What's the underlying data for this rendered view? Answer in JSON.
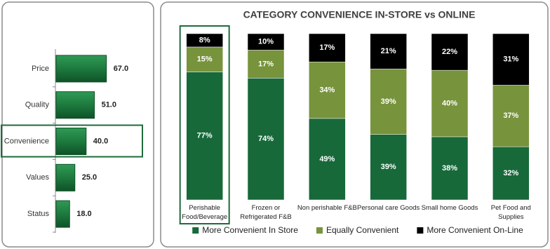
{
  "chart_data": [
    {
      "type": "hbar",
      "categories": [
        "Price",
        "Quality",
        "Convenience",
        "Values",
        "Status"
      ],
      "values": [
        67.0,
        51.0,
        40.0,
        25.0,
        18.0
      ],
      "value_labels": [
        "67.0",
        "51.0",
        "40.0",
        "25.0",
        "18.0"
      ],
      "color": "#1d7a3e",
      "highlight": 2
    },
    {
      "type": "stacked_bar",
      "title": "CATEGORY CONVENIENCE IN-STORE vs ONLINE",
      "categories": [
        "Perishable Food/Beverage",
        "Frozen or Refrigerated F&B",
        "Non perishable F&B",
        "Personal care Goods",
        "Small home Goods",
        "Pet Food and Supplies"
      ],
      "series": [
        {
          "name": "More Convenient In Store",
          "color": "#17693a",
          "values": [
            77,
            74,
            49,
            39,
            38,
            32
          ],
          "value_labels": [
            "77%",
            "74%",
            "49%",
            "39%",
            "38%",
            "32%"
          ]
        },
        {
          "name": "Equally Convenient",
          "color": "#77933c",
          "values": [
            15,
            17,
            34,
            39,
            40,
            37
          ],
          "value_labels": [
            "15%",
            "17%",
            "34%",
            "39%",
            "40%",
            "37%"
          ]
        },
        {
          "name": "More Convenient On-Line",
          "color": "#000000",
          "values": [
            8,
            10,
            17,
            21,
            22,
            31
          ],
          "value_labels": [
            "8%",
            "10%",
            "17%",
            "21%",
            "22%",
            "31%"
          ]
        }
      ],
      "highlight": 0,
      "legend": "bottom"
    }
  ]
}
